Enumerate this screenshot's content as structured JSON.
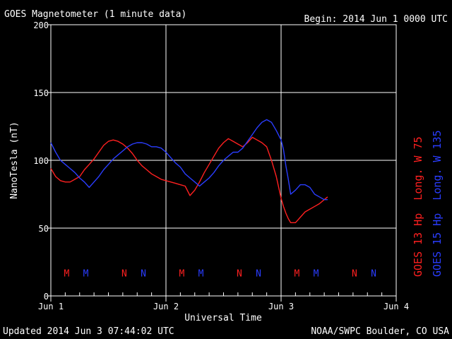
{
  "header": {
    "title": "GOES Magnetometer (1 minute data)",
    "begin": "Begin:  2014 Jun 1 0000 UTC"
  },
  "footer": {
    "updated": "Updated 2014 Jun  3 07:44:02 UTC",
    "credit": "NOAA/SWPC Boulder, CO USA"
  },
  "chart_data": {
    "type": "line",
    "xlabel": "Universal Time",
    "ylabel": "NanoTesla (nT)",
    "xlim": [
      0,
      72
    ],
    "ylim": [
      0,
      200
    ],
    "x_unit": "hours since 2014 Jun 1 0000 UTC",
    "y_ticks": [
      0,
      50,
      100,
      150,
      200
    ],
    "x_ticks": [
      {
        "x": 0,
        "label": "Jun 1"
      },
      {
        "x": 24,
        "label": "Jun 2"
      },
      {
        "x": 48,
        "label": "Jun 3"
      },
      {
        "x": 72,
        "label": "Jun 4"
      }
    ],
    "grid": true,
    "legend_position": "right-vertical",
    "colors": {
      "goes13": "#ff2020",
      "goes15": "#2a3dff",
      "grid": "#ffffff",
      "axis": "#ffffff",
      "background": "#000000"
    },
    "series": [
      {
        "name": "GOES 13 Hp  Long. W 75",
        "color": "#ff2020",
        "x": [
          0,
          1,
          2,
          3,
          4,
          5,
          6,
          7,
          8,
          9,
          10,
          11,
          12,
          13,
          14,
          15,
          16,
          17,
          18,
          19,
          20,
          21,
          22,
          23,
          24,
          25,
          26,
          27,
          28,
          29,
          30,
          31,
          32,
          33,
          34,
          35,
          36,
          37,
          38,
          39,
          40,
          41,
          42,
          43,
          44,
          45,
          46,
          47,
          48,
          48.5,
          49,
          49.5,
          50,
          51,
          52,
          53,
          54,
          55,
          56,
          57,
          57.7
        ],
        "values": [
          94,
          88,
          85,
          84,
          84,
          86,
          88,
          93,
          97,
          101,
          106,
          111,
          114,
          115,
          114,
          112,
          109,
          105,
          100,
          96,
          93,
          90,
          88,
          86,
          85,
          84,
          83,
          82,
          81,
          74,
          78,
          84,
          91,
          97,
          103,
          109,
          113,
          116,
          114,
          112,
          110,
          113,
          117,
          115,
          113,
          110,
          100,
          88,
          72,
          66,
          61,
          57,
          54,
          54,
          58,
          62,
          64,
          66,
          68,
          71,
          73
        ]
      },
      {
        "name": "GOES 15 Hp  Long. W 135",
        "color": "#2a3dff",
        "x": [
          0,
          1,
          2,
          3,
          4,
          5,
          6,
          7,
          8,
          9,
          10,
          11,
          12,
          13,
          14,
          15,
          16,
          17,
          18,
          19,
          20,
          21,
          22,
          23,
          24,
          25,
          26,
          27,
          28,
          29,
          30,
          31,
          32,
          33,
          34,
          35,
          36,
          37,
          38,
          39,
          40,
          41,
          42,
          43,
          44,
          45,
          46,
          47,
          48,
          48.5,
          49,
          49.5,
          50,
          51,
          52,
          53,
          54,
          55,
          56,
          57,
          57.7
        ],
        "values": [
          113,
          106,
          100,
          97,
          94,
          91,
          87,
          84,
          80,
          84,
          88,
          93,
          97,
          101,
          104,
          107,
          110,
          112,
          113,
          113,
          112,
          110,
          110,
          109,
          106,
          102,
          98,
          95,
          90,
          87,
          84,
          81,
          84,
          87,
          91,
          96,
          100,
          103,
          106,
          106,
          109,
          114,
          119,
          124,
          128,
          130,
          128,
          122,
          115,
          108,
          96,
          86,
          75,
          78,
          82,
          82,
          80,
          75,
          73,
          71,
          71
        ]
      }
    ],
    "markers": [
      {
        "x": 3.3,
        "label": "M",
        "color": "#ff2020"
      },
      {
        "x": 7.3,
        "label": "M",
        "color": "#2a3dff"
      },
      {
        "x": 15.3,
        "label": "N",
        "color": "#ff2020"
      },
      {
        "x": 19.3,
        "label": "N",
        "color": "#2a3dff"
      },
      {
        "x": 27.3,
        "label": "M",
        "color": "#ff2020"
      },
      {
        "x": 31.3,
        "label": "M",
        "color": "#2a3dff"
      },
      {
        "x": 39.3,
        "label": "N",
        "color": "#ff2020"
      },
      {
        "x": 43.3,
        "label": "N",
        "color": "#2a3dff"
      },
      {
        "x": 51.3,
        "label": "M",
        "color": "#ff2020"
      },
      {
        "x": 55.3,
        "label": "M",
        "color": "#2a3dff"
      },
      {
        "x": 63.3,
        "label": "N",
        "color": "#ff2020"
      },
      {
        "x": 67.3,
        "label": "N",
        "color": "#2a3dff"
      }
    ],
    "marker_level": 17
  }
}
